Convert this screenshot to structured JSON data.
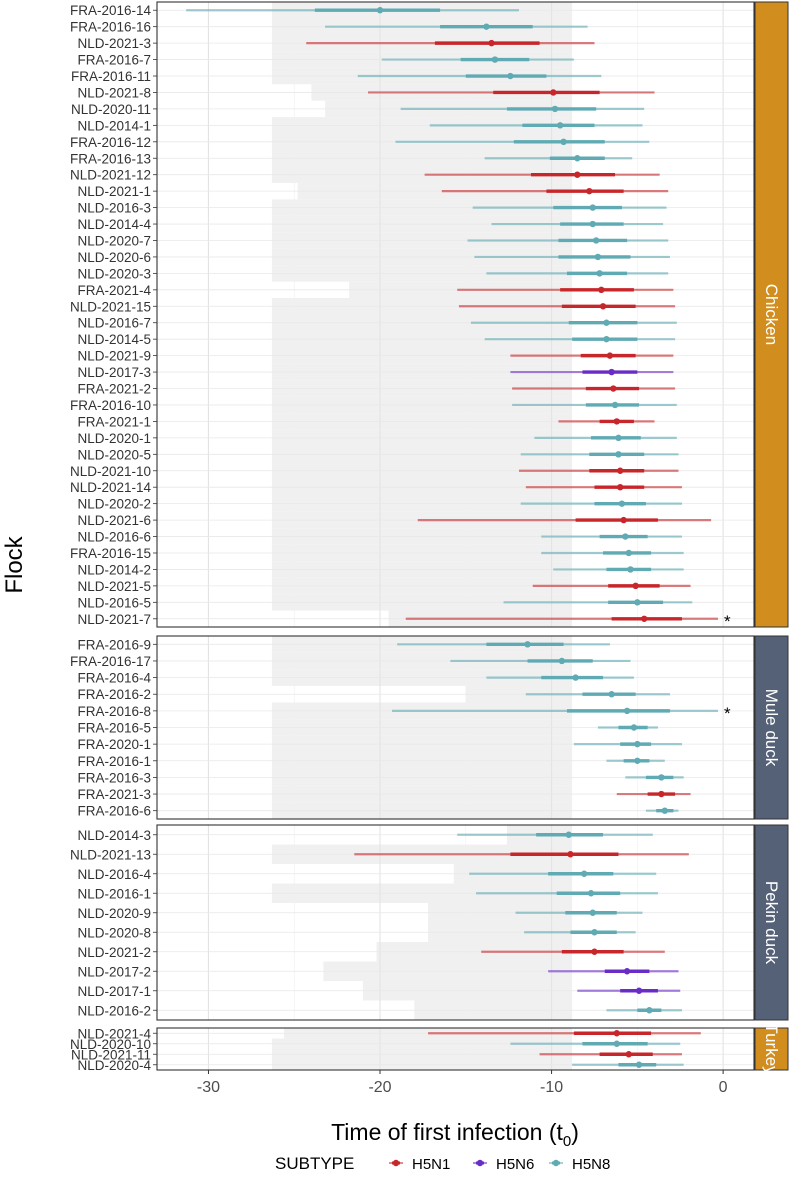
{
  "chart_data": {
    "type": "forest",
    "ylabel": "Flock",
    "xlabel": "Time of first infection (t",
    "xlabel_sub": "0",
    "xlabel_close": ")",
    "xlim": [
      -33,
      1.8
    ],
    "xticks": [
      -30,
      -20,
      -10,
      0
    ],
    "xtick_labels": [
      "-30",
      "-20",
      "-10",
      "0"
    ],
    "legend": {
      "title": "SUBTYPE",
      "items": [
        {
          "name": "H5N1",
          "color": "#C7262A"
        },
        {
          "name": "H5N6",
          "color": "#6A2CC6"
        },
        {
          "name": "H5N8",
          "color": "#5FAAB3"
        }
      ]
    },
    "strip_colors": {
      "Chicken": "#D18D1E",
      "Mule duck": "#556177",
      "Pekin duck": "#556177",
      "Turkey": "#D18D1E"
    },
    "panels": [
      {
        "name": "Chicken",
        "rows": [
          {
            "flock": "FRA-2016-14",
            "subtype": "H5N8",
            "est": -20.0,
            "lo50": -23.8,
            "hi50": -16.5,
            "lo95": -31.3,
            "hi95": -11.9,
            "shade": -26.3,
            "star": false
          },
          {
            "flock": "FRA-2016-16",
            "subtype": "H5N8",
            "est": -13.8,
            "lo50": -16.5,
            "hi50": -11.1,
            "lo95": -23.2,
            "hi95": -7.9,
            "shade": -26.3,
            "star": false
          },
          {
            "flock": "NLD-2021-3",
            "subtype": "H5N1",
            "est": -13.5,
            "lo50": -16.8,
            "hi50": -10.7,
            "lo95": -24.3,
            "hi95": -7.5,
            "shade": -26.3,
            "star": false
          },
          {
            "flock": "FRA-2016-7",
            "subtype": "H5N8",
            "est": -13.3,
            "lo50": -15.3,
            "hi50": -11.3,
            "lo95": -19.9,
            "hi95": -8.7,
            "shade": -26.3,
            "star": false
          },
          {
            "flock": "FRA-2016-11",
            "subtype": "H5N8",
            "est": -12.4,
            "lo50": -15.0,
            "hi50": -10.3,
            "lo95": -21.3,
            "hi95": -7.1,
            "shade": -26.3,
            "star": false
          },
          {
            "flock": "NLD-2021-8",
            "subtype": "H5N1",
            "est": -9.9,
            "lo50": -13.4,
            "hi50": -7.2,
            "lo95": -20.7,
            "hi95": -4.0,
            "shade": -24.0,
            "star": false
          },
          {
            "flock": "NLD-2020-11",
            "subtype": "H5N8",
            "est": -9.8,
            "lo50": -12.6,
            "hi50": -7.4,
            "lo95": -18.8,
            "hi95": -4.6,
            "shade": -23.2,
            "star": false
          },
          {
            "flock": "NLD-2014-1",
            "subtype": "H5N8",
            "est": -9.5,
            "lo50": -11.7,
            "hi50": -7.5,
            "lo95": -17.1,
            "hi95": -4.7,
            "shade": -26.3,
            "star": false
          },
          {
            "flock": "FRA-2016-12",
            "subtype": "H5N8",
            "est": -9.3,
            "lo50": -12.2,
            "hi50": -6.9,
            "lo95": -19.1,
            "hi95": -4.3,
            "shade": -26.3,
            "star": false
          },
          {
            "flock": "FRA-2016-13",
            "subtype": "H5N8",
            "est": -8.5,
            "lo50": -10.1,
            "hi50": -6.9,
            "lo95": -13.9,
            "hi95": -5.3,
            "shade": -26.3,
            "star": false
          },
          {
            "flock": "NLD-2021-12",
            "subtype": "H5N1",
            "est": -8.5,
            "lo50": -11.2,
            "hi50": -6.3,
            "lo95": -17.4,
            "hi95": -3.7,
            "shade": -26.3,
            "star": false
          },
          {
            "flock": "NLD-2021-1",
            "subtype": "H5N1",
            "est": -7.8,
            "lo50": -10.3,
            "hi50": -5.8,
            "lo95": -16.4,
            "hi95": -3.2,
            "shade": -24.8,
            "star": false
          },
          {
            "flock": "NLD-2016-3",
            "subtype": "H5N8",
            "est": -7.6,
            "lo50": -9.9,
            "hi50": -5.9,
            "lo95": -14.6,
            "hi95": -3.3,
            "shade": -26.3,
            "star": false
          },
          {
            "flock": "NLD-2014-4",
            "subtype": "H5N8",
            "est": -7.6,
            "lo50": -9.5,
            "hi50": -5.8,
            "lo95": -13.5,
            "hi95": -3.5,
            "shade": -26.3,
            "star": false
          },
          {
            "flock": "NLD-2020-7",
            "subtype": "H5N8",
            "est": -7.4,
            "lo50": -9.6,
            "hi50": -5.6,
            "lo95": -14.9,
            "hi95": -3.2,
            "shade": -26.3,
            "star": false
          },
          {
            "flock": "NLD-2020-6",
            "subtype": "H5N8",
            "est": -7.3,
            "lo50": -9.6,
            "hi50": -5.4,
            "lo95": -14.5,
            "hi95": -3.1,
            "shade": -26.3,
            "star": false
          },
          {
            "flock": "NLD-2020-3",
            "subtype": "H5N8",
            "est": -7.2,
            "lo50": -9.1,
            "hi50": -5.6,
            "lo95": -13.8,
            "hi95": -3.2,
            "shade": -26.3,
            "star": false
          },
          {
            "flock": "FRA-2021-4",
            "subtype": "H5N1",
            "est": -7.1,
            "lo50": -9.5,
            "hi50": -5.2,
            "lo95": -15.5,
            "hi95": -2.9,
            "shade": -21.8,
            "star": false
          },
          {
            "flock": "NLD-2021-15",
            "subtype": "H5N1",
            "est": -7.0,
            "lo50": -9.4,
            "hi50": -5.1,
            "lo95": -15.4,
            "hi95": -2.8,
            "shade": -26.3,
            "star": false
          },
          {
            "flock": "NLD-2016-7",
            "subtype": "H5N8",
            "est": -6.8,
            "lo50": -9.0,
            "hi50": -5.0,
            "lo95": -14.7,
            "hi95": -2.7,
            "shade": -26.3,
            "star": false
          },
          {
            "flock": "NLD-2014-5",
            "subtype": "H5N8",
            "est": -6.8,
            "lo50": -8.8,
            "hi50": -5.0,
            "lo95": -13.9,
            "hi95": -2.8,
            "shade": -26.3,
            "star": false
          },
          {
            "flock": "NLD-2021-9",
            "subtype": "H5N1",
            "est": -6.6,
            "lo50": -8.3,
            "hi50": -5.1,
            "lo95": -12.4,
            "hi95": -2.9,
            "shade": -26.3,
            "star": false
          },
          {
            "flock": "NLD-2017-3",
            "subtype": "H5N6",
            "est": -6.5,
            "lo50": -8.2,
            "hi50": -5.0,
            "lo95": -12.4,
            "hi95": -2.9,
            "shade": -26.3,
            "star": false
          },
          {
            "flock": "FRA-2021-2",
            "subtype": "H5N1",
            "est": -6.4,
            "lo50": -8.0,
            "hi50": -4.9,
            "lo95": -12.3,
            "hi95": -2.8,
            "shade": -26.3,
            "star": false
          },
          {
            "flock": "FRA-2016-10",
            "subtype": "H5N8",
            "est": -6.3,
            "lo50": -8.0,
            "hi50": -4.9,
            "lo95": -12.3,
            "hi95": -2.7,
            "shade": -26.3,
            "star": false
          },
          {
            "flock": "FRA-2021-1",
            "subtype": "H5N1",
            "est": -6.2,
            "lo50": -7.2,
            "hi50": -5.2,
            "lo95": -9.6,
            "hi95": -4.0,
            "shade": -26.3,
            "star": false
          },
          {
            "flock": "NLD-2020-1",
            "subtype": "H5N8",
            "est": -6.1,
            "lo50": -7.7,
            "hi50": -4.8,
            "lo95": -11.0,
            "hi95": -2.7,
            "shade": -26.3,
            "star": false
          },
          {
            "flock": "NLD-2020-5",
            "subtype": "H5N8",
            "est": -6.1,
            "lo50": -7.8,
            "hi50": -4.6,
            "lo95": -11.8,
            "hi95": -2.6,
            "shade": -26.3,
            "star": false
          },
          {
            "flock": "NLD-2021-10",
            "subtype": "H5N1",
            "est": -6.0,
            "lo50": -7.8,
            "hi50": -4.6,
            "lo95": -11.9,
            "hi95": -2.6,
            "shade": -26.3,
            "star": false
          },
          {
            "flock": "NLD-2021-14",
            "subtype": "H5N1",
            "est": -6.0,
            "lo50": -7.5,
            "hi50": -4.6,
            "lo95": -11.5,
            "hi95": -2.4,
            "shade": -26.3,
            "star": false
          },
          {
            "flock": "NLD-2020-2",
            "subtype": "H5N8",
            "est": -5.9,
            "lo50": -7.5,
            "hi50": -4.5,
            "lo95": -11.8,
            "hi95": -2.4,
            "shade": -26.3,
            "star": false
          },
          {
            "flock": "NLD-2021-6",
            "subtype": "H5N1",
            "est": -5.8,
            "lo50": -8.6,
            "hi50": -3.8,
            "lo95": -17.8,
            "hi95": -0.7,
            "shade": -26.3,
            "star": false
          },
          {
            "flock": "NLD-2016-6",
            "subtype": "H5N8",
            "est": -5.7,
            "lo50": -7.2,
            "hi50": -4.4,
            "lo95": -10.6,
            "hi95": -2.4,
            "shade": -26.3,
            "star": false
          },
          {
            "flock": "FRA-2016-15",
            "subtype": "H5N8",
            "est": -5.5,
            "lo50": -7.0,
            "hi50": -4.2,
            "lo95": -10.6,
            "hi95": -2.3,
            "shade": -26.3,
            "star": false
          },
          {
            "flock": "NLD-2014-2",
            "subtype": "H5N8",
            "est": -5.4,
            "lo50": -6.8,
            "hi50": -4.2,
            "lo95": -9.9,
            "hi95": -2.3,
            "shade": -26.3,
            "star": false
          },
          {
            "flock": "NLD-2021-5",
            "subtype": "H5N1",
            "est": -5.1,
            "lo50": -6.7,
            "hi50": -3.7,
            "lo95": -11.1,
            "hi95": -1.9,
            "shade": -26.3,
            "star": false
          },
          {
            "flock": "NLD-2016-5",
            "subtype": "H5N8",
            "est": -5.0,
            "lo50": -6.7,
            "hi50": -3.5,
            "lo95": -12.8,
            "hi95": -1.8,
            "shade": -26.3,
            "star": false
          },
          {
            "flock": "NLD-2021-7",
            "subtype": "H5N1",
            "est": -4.6,
            "lo50": -6.5,
            "hi50": -2.4,
            "lo95": -18.5,
            "hi95": -0.3,
            "shade": -19.5,
            "star": true
          }
        ]
      },
      {
        "name": "Mule duck",
        "rows": [
          {
            "flock": "FRA-2016-9",
            "subtype": "H5N8",
            "est": -11.4,
            "lo50": -13.8,
            "hi50": -9.3,
            "lo95": -19.0,
            "hi95": -6.6,
            "shade": -26.3,
            "star": false
          },
          {
            "flock": "FRA-2016-17",
            "subtype": "H5N8",
            "est": -9.4,
            "lo50": -11.4,
            "hi50": -7.6,
            "lo95": -15.9,
            "hi95": -5.4,
            "shade": -26.3,
            "star": false
          },
          {
            "flock": "FRA-2016-4",
            "subtype": "H5N8",
            "est": -8.6,
            "lo50": -10.6,
            "hi50": -7.0,
            "lo95": -13.8,
            "hi95": -5.2,
            "shade": -26.3,
            "star": false
          },
          {
            "flock": "FRA-2016-2",
            "subtype": "H5N8",
            "est": -6.5,
            "lo50": -8.2,
            "hi50": -5.1,
            "lo95": -11.5,
            "hi95": -3.1,
            "shade": -15.0,
            "star": false
          },
          {
            "flock": "FRA-2016-8",
            "subtype": "H5N8",
            "est": -5.6,
            "lo50": -9.1,
            "hi50": -3.1,
            "lo95": -19.3,
            "hi95": -0.3,
            "shade": -26.3,
            "star": true
          },
          {
            "flock": "FRA-2016-5",
            "subtype": "H5N8",
            "est": -5.2,
            "lo50": -6.1,
            "hi50": -4.4,
            "lo95": -7.3,
            "hi95": -3.8,
            "shade": -26.3,
            "star": false
          },
          {
            "flock": "FRA-2020-1",
            "subtype": "H5N8",
            "est": -5.0,
            "lo50": -6.0,
            "hi50": -4.2,
            "lo95": -8.7,
            "hi95": -2.4,
            "shade": -26.3,
            "star": false
          },
          {
            "flock": "FRA-2016-1",
            "subtype": "H5N8",
            "est": -5.0,
            "lo50": -5.8,
            "hi50": -4.3,
            "lo95": -6.8,
            "hi95": -3.4,
            "shade": -26.3,
            "star": false
          },
          {
            "flock": "FRA-2016-3",
            "subtype": "H5N8",
            "est": -3.6,
            "lo50": -4.5,
            "hi50": -2.9,
            "lo95": -5.7,
            "hi95": -2.3,
            "shade": -26.3,
            "star": false
          },
          {
            "flock": "FRA-2021-3",
            "subtype": "H5N1",
            "est": -3.6,
            "lo50": -4.4,
            "hi50": -2.8,
            "lo95": -6.2,
            "hi95": -1.9,
            "shade": -26.3,
            "star": false
          },
          {
            "flock": "FRA-2016-6",
            "subtype": "H5N8",
            "est": -3.4,
            "lo50": -3.9,
            "hi50": -2.9,
            "lo95": -4.5,
            "hi95": -2.6,
            "shade": -26.3,
            "star": false
          }
        ]
      },
      {
        "name": "Pekin duck",
        "rows": [
          {
            "flock": "NLD-2014-3",
            "subtype": "H5N8",
            "est": -9.0,
            "lo50": -10.9,
            "hi50": -7.0,
            "lo95": -15.5,
            "hi95": -4.1,
            "shade": -12.6,
            "star": false
          },
          {
            "flock": "NLD-2021-13",
            "subtype": "H5N1",
            "est": -8.9,
            "lo50": -12.4,
            "hi50": -6.1,
            "lo95": -21.5,
            "hi95": -2.0,
            "shade": -26.3,
            "star": false
          },
          {
            "flock": "NLD-2016-4",
            "subtype": "H5N8",
            "est": -8.1,
            "lo50": -10.2,
            "hi50": -6.4,
            "lo95": -14.8,
            "hi95": -3.9,
            "shade": -15.7,
            "star": false
          },
          {
            "flock": "NLD-2016-1",
            "subtype": "H5N8",
            "est": -7.7,
            "lo50": -9.7,
            "hi50": -6.0,
            "lo95": -14.4,
            "hi95": -3.8,
            "shade": -26.3,
            "star": false
          },
          {
            "flock": "NLD-2020-9",
            "subtype": "H5N8",
            "est": -7.6,
            "lo50": -9.2,
            "hi50": -6.2,
            "lo95": -12.1,
            "hi95": -4.7,
            "shade": -17.2,
            "star": false
          },
          {
            "flock": "NLD-2020-8",
            "subtype": "H5N8",
            "est": -7.5,
            "lo50": -8.9,
            "hi50": -6.2,
            "lo95": -11.6,
            "hi95": -5.1,
            "shade": -17.2,
            "star": false
          },
          {
            "flock": "NLD-2021-2",
            "subtype": "H5N1",
            "est": -7.5,
            "lo50": -9.4,
            "hi50": -5.8,
            "lo95": -14.1,
            "hi95": -3.4,
            "shade": -20.2,
            "star": false
          },
          {
            "flock": "NLD-2017-2",
            "subtype": "H5N6",
            "est": -5.6,
            "lo50": -6.9,
            "hi50": -4.3,
            "lo95": -10.2,
            "hi95": -2.6,
            "shade": -23.3,
            "star": false
          },
          {
            "flock": "NLD-2017-1",
            "subtype": "H5N6",
            "est": -4.9,
            "lo50": -6.0,
            "hi50": -3.8,
            "lo95": -8.5,
            "hi95": -2.5,
            "shade": -21.0,
            "star": false
          },
          {
            "flock": "NLD-2016-2",
            "subtype": "H5N8",
            "est": -4.3,
            "lo50": -5.0,
            "hi50": -3.6,
            "lo95": -6.8,
            "hi95": -2.4,
            "shade": -18.0,
            "star": false
          }
        ]
      },
      {
        "name": "Turkey",
        "rows": [
          {
            "flock": "NLD-2021-4",
            "subtype": "H5N1",
            "est": -6.2,
            "lo50": -8.7,
            "hi50": -4.2,
            "lo95": -17.2,
            "hi95": -1.3,
            "shade": -25.6,
            "star": false
          },
          {
            "flock": "NLD-2020-10",
            "subtype": "H5N8",
            "est": -6.2,
            "lo50": -8.2,
            "hi50": -4.4,
            "lo95": -12.4,
            "hi95": -2.5,
            "shade": -26.3,
            "star": false
          },
          {
            "flock": "NLD-2021-11",
            "subtype": "H5N1",
            "est": -5.5,
            "lo50": -7.2,
            "hi50": -4.1,
            "lo95": -10.7,
            "hi95": -2.4,
            "shade": -26.3,
            "star": false
          },
          {
            "flock": "NLD-2020-4",
            "subtype": "H5N8",
            "est": -4.9,
            "lo50": -6.1,
            "hi50": -3.9,
            "lo95": -8.8,
            "hi95": -2.3,
            "shade": -26.3,
            "star": false
          }
        ]
      }
    ]
  }
}
